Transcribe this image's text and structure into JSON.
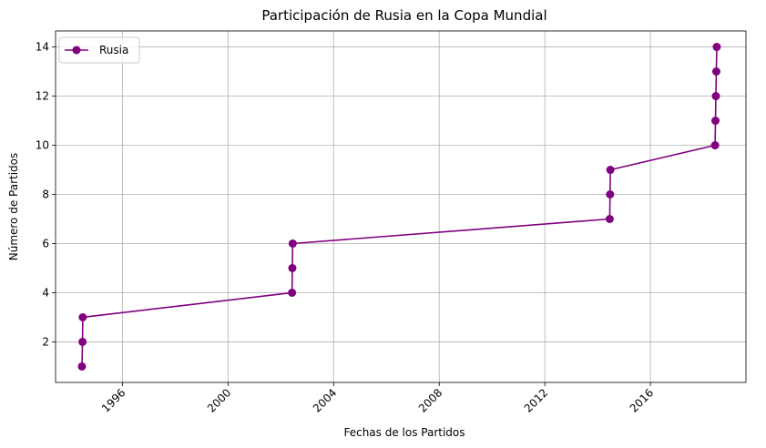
{
  "chart_data": {
    "type": "line",
    "title": "Participación de Rusia en la Copa Mundial",
    "xlabel": "Fechas de los Partidos",
    "ylabel": "Número de Partidos",
    "x_is_date": true,
    "xlim": [
      "1993-06-20",
      "2019-08-15"
    ],
    "ylim": [
      0.35,
      14.65
    ],
    "x_ticks": [
      "1996",
      "2000",
      "2004",
      "2008",
      "2012",
      "2016"
    ],
    "y_ticks": [
      2,
      4,
      6,
      8,
      10,
      12,
      14
    ],
    "grid": true,
    "legend_position": "top-left",
    "series": [
      {
        "name": "Rusia",
        "color": "#800080",
        "marker": "circle",
        "x": [
          "1994-06-20",
          "1994-06-28",
          "1994-07-01",
          "2002-06-05",
          "2002-06-09",
          "2002-06-14",
          "2014-06-17",
          "2014-06-22",
          "2014-06-26",
          "2018-06-14",
          "2018-06-19",
          "2018-06-25",
          "2018-07-01",
          "2018-07-07"
        ],
        "y": [
          1,
          2,
          3,
          4,
          5,
          6,
          7,
          8,
          9,
          10,
          11,
          12,
          13,
          14
        ]
      }
    ]
  }
}
